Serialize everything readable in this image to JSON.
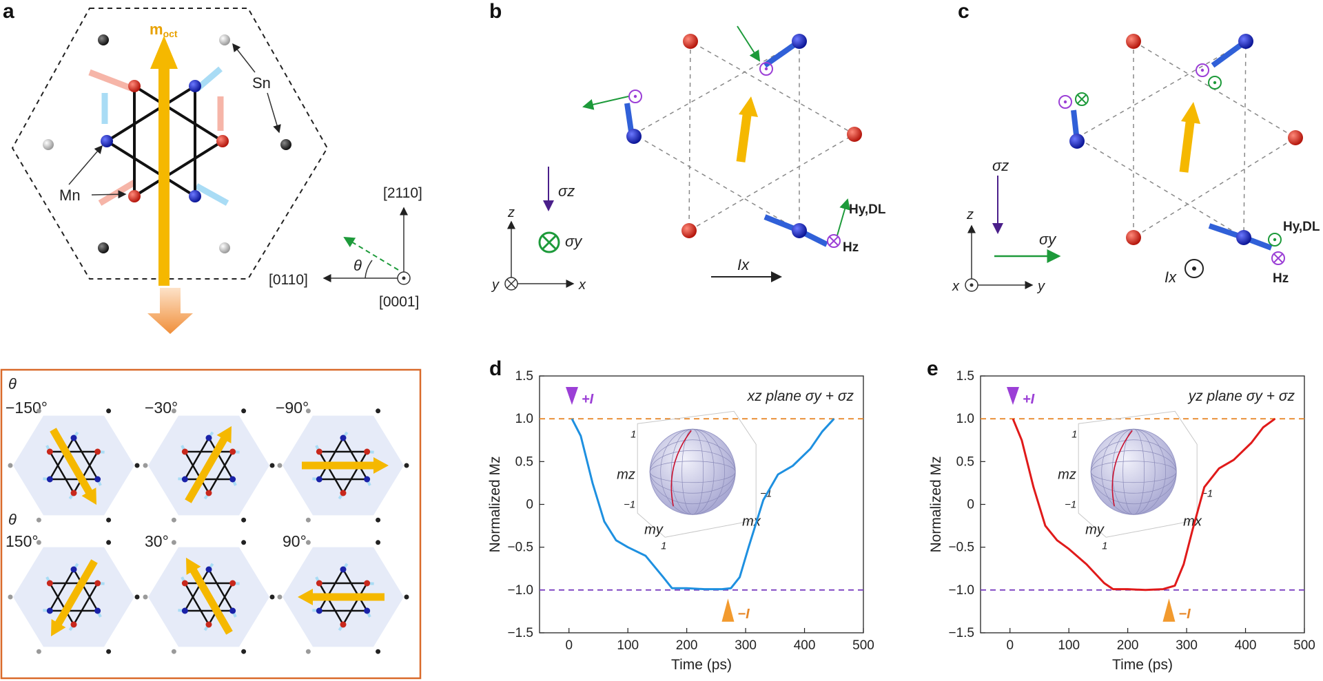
{
  "panels": {
    "a": {
      "label": "a",
      "m_oct": "m",
      "m_oct_sub": "oct",
      "sn": "Sn",
      "mn": "Mn",
      "dir_up": "[2110]",
      "dir_left": "[0110]",
      "dir_out": "[0001]",
      "theta": "θ",
      "box_theta_top": "θ",
      "box_theta_bottom": "θ",
      "angles_top": [
        "−150°",
        "−30°",
        "−90°"
      ],
      "angles_bottom": [
        "150°",
        "30°",
        "90°"
      ]
    },
    "b": {
      "label": "b",
      "sigma_z": "σz",
      "sigma_y": "σy",
      "current": "Ix",
      "h_dl": "Hy,DL",
      "h_z": "Hz",
      "axis_z": "z",
      "axis_x": "x",
      "axis_y": "y"
    },
    "c": {
      "label": "c",
      "sigma_z": "σz",
      "sigma_y": "σy",
      "current": "Ix",
      "h_dl": "Hy,DL",
      "h_z": "Hz",
      "axis_z": "z",
      "axis_x": "x",
      "axis_y": "y"
    }
  },
  "colors": {
    "blue_line": "#1e90e0",
    "red_line": "#e01a1a",
    "orange_dash": "#e8892b",
    "purple_dash": "#7a3fc0",
    "octupole": "#f5b800",
    "frame": "#d96a2a"
  },
  "chart_data": [
    {
      "panel": "d",
      "type": "line",
      "title": "xz plane σy + σz",
      "xlabel": "Time (ps)",
      "ylabel": "Normalized Mz",
      "xlim": [
        -50,
        500
      ],
      "ylim": [
        -1.5,
        1.5
      ],
      "xticks": [
        0,
        100,
        200,
        300,
        400,
        500
      ],
      "yticks": [
        1.5,
        1.0,
        0.5,
        0,
        -0.5,
        -1.0,
        -1.5
      ],
      "xtick_labels": [
        "0",
        "100",
        "200",
        "300",
        "400",
        "500"
      ],
      "ytick_labels": [
        "1.5",
        "1.0",
        "0.5",
        "0",
        "−0.5",
        "−1.0",
        "−1.5"
      ],
      "ref_lines": [
        1.0,
        -1.0
      ],
      "annotations": {
        "plus_i": "+I",
        "minus_i": "−I"
      },
      "inset_labels": {
        "mz": "mz",
        "my": "my",
        "mx": "mx",
        "one": "1",
        "minus_one": "−1"
      },
      "series": [
        {
          "name": "Mz",
          "color": "#1e90e0",
          "x": [
            5,
            20,
            40,
            60,
            80,
            100,
            130,
            160,
            175,
            200,
            230,
            260,
            275,
            290,
            305,
            330,
            355,
            380,
            410,
            430,
            450
          ],
          "y": [
            1.0,
            0.8,
            0.25,
            -0.2,
            -0.42,
            -0.5,
            -0.6,
            -0.85,
            -0.98,
            -0.98,
            -0.99,
            -0.99,
            -0.98,
            -0.85,
            -0.5,
            0.05,
            0.35,
            0.45,
            0.65,
            0.85,
            1.0
          ]
        }
      ]
    },
    {
      "panel": "e",
      "type": "line",
      "title": "yz plane σy + σz",
      "xlabel": "Time (ps)",
      "ylabel": "Normalized Mz",
      "xlim": [
        -50,
        500
      ],
      "ylim": [
        -1.5,
        1.5
      ],
      "xticks": [
        0,
        100,
        200,
        300,
        400,
        500
      ],
      "yticks": [
        1.5,
        1.0,
        0.5,
        0,
        -0.5,
        -1.0,
        -1.5
      ],
      "xtick_labels": [
        "0",
        "100",
        "200",
        "300",
        "400",
        "500"
      ],
      "ytick_labels": [
        "1.5",
        "1.0",
        "0.5",
        "0",
        "−0.5",
        "−1.0",
        "−1.5"
      ],
      "ref_lines": [
        1.0,
        -1.0
      ],
      "annotations": {
        "plus_i": "+I",
        "minus_i": "−I"
      },
      "inset_labels": {
        "mz": "mz",
        "my": "my",
        "mx": "mx",
        "one": "1",
        "minus_one": "−1"
      },
      "series": [
        {
          "name": "Mz",
          "color": "#e01a1a",
          "x": [
            5,
            20,
            40,
            60,
            80,
            100,
            130,
            160,
            175,
            200,
            230,
            260,
            280,
            295,
            310,
            330,
            355,
            380,
            410,
            430,
            450
          ],
          "y": [
            1.0,
            0.75,
            0.2,
            -0.25,
            -0.42,
            -0.52,
            -0.7,
            -0.92,
            -0.99,
            -0.99,
            -1.0,
            -0.99,
            -0.95,
            -0.7,
            -0.3,
            0.2,
            0.42,
            0.52,
            0.72,
            0.9,
            1.0
          ]
        }
      ]
    }
  ]
}
